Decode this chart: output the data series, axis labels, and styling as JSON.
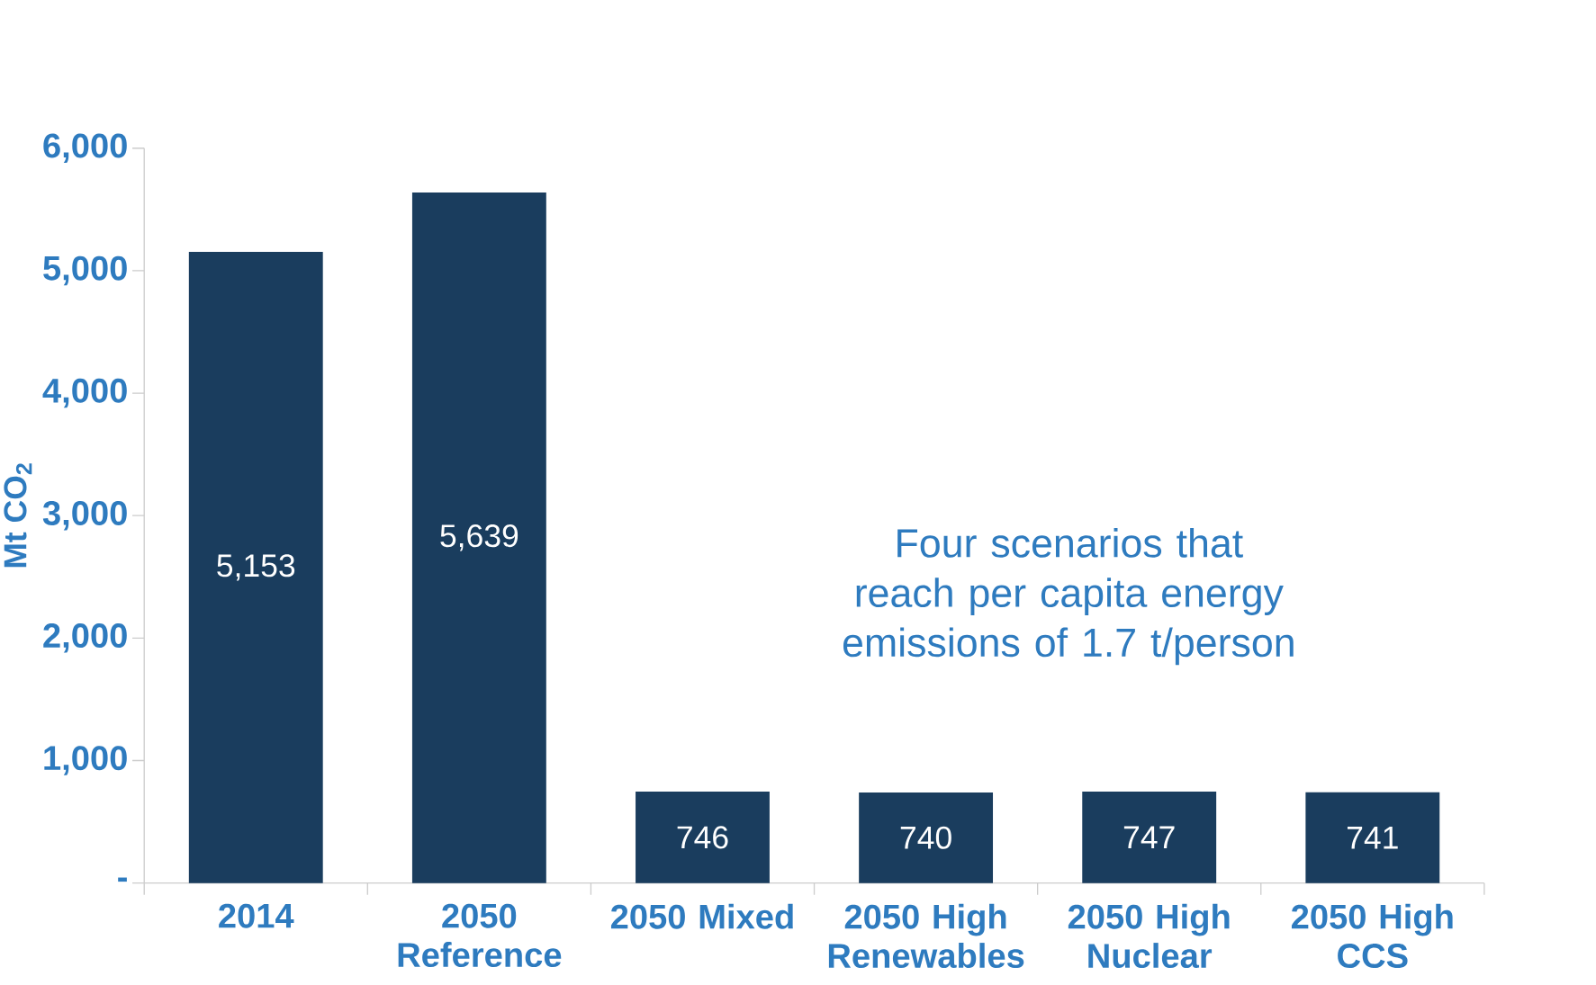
{
  "chart_data": {
    "type": "bar",
    "ylabel": "Mt CO$_{2}$",
    "categories": [
      "2014",
      "2050 Reference",
      "2050 Mixed",
      "2050 High Renewables",
      "2050 High Nuclear",
      "2050 High CCS"
    ],
    "values": [
      5153,
      5639,
      746,
      740,
      747,
      741
    ],
    "value_labels": [
      "5,153",
      "5,639",
      "746",
      "740",
      "747",
      "741"
    ],
    "color": "#1a3d5e",
    "ylim": [
      0,
      6000
    ],
    "yticks": [
      {
        "value": 0,
        "label": "-"
      },
      {
        "value": 1000,
        "label": "1,000"
      },
      {
        "value": 2000,
        "label": "2,000"
      },
      {
        "value": 3000,
        "label": "3,000"
      },
      {
        "value": 4000,
        "label": "4,000"
      },
      {
        "value": 5000,
        "label": "5,000"
      },
      {
        "value": 6000,
        "label": "6,000"
      }
    ],
    "annotations": [
      "Four scenarios that reach per capita energy emissions of 1.7 t/person"
    ],
    "grid": false
  }
}
